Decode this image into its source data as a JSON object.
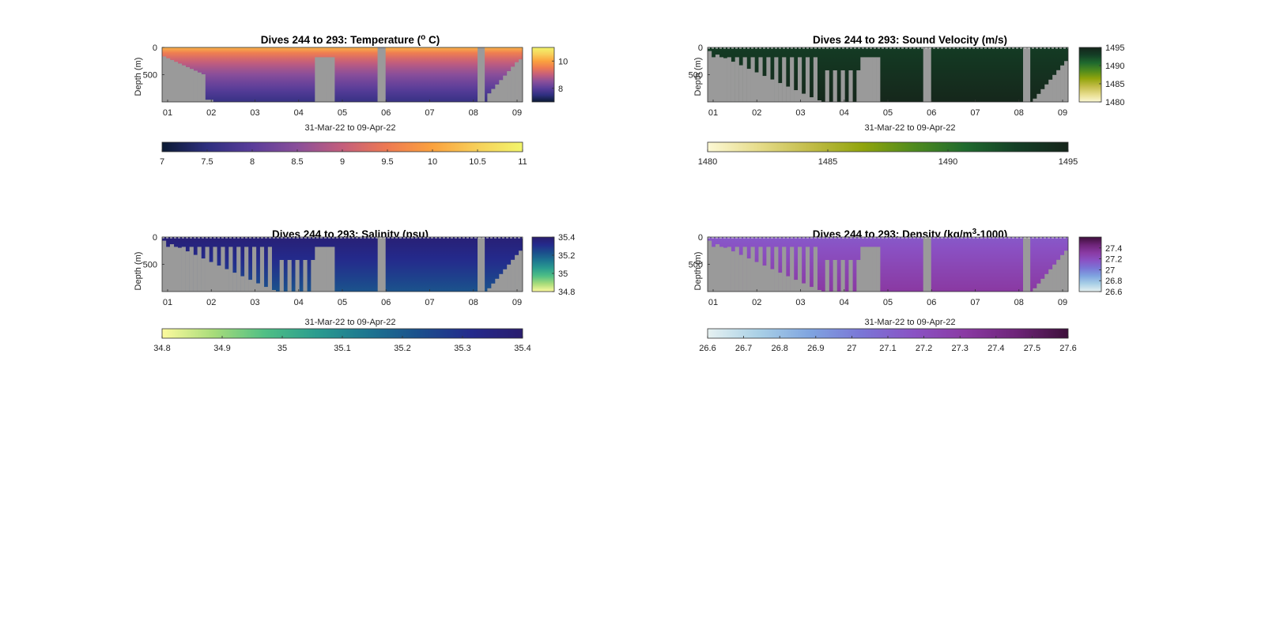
{
  "figure": {
    "background": "#ffffff",
    "land_color": "#9a9a9a"
  },
  "chart_data": [
    {
      "type": "heatmap",
      "title": "Dives 244 to 293: Temperature (",
      "title_sup": "o",
      "title_suffix": " C)",
      "xlabel": "31-Mar-22 to 09-Apr-22",
      "ylabel": "Depth (m)",
      "x_ticks": [
        "01",
        "02",
        "03",
        "04",
        "05",
        "06",
        "07",
        "08",
        "09"
      ],
      "x_range": [
        "31-Mar-22",
        "09-Apr-22"
      ],
      "y_ticks": [
        0,
        500
      ],
      "ylim": [
        0,
        1000
      ],
      "y_reversed": true,
      "clim": [
        7,
        11
      ],
      "colormap": [
        "#0b1a33",
        "#2e2f7f",
        "#5a3d9a",
        "#8a4f9a",
        "#c45e7c",
        "#ee7a52",
        "#fba23e",
        "#f7d05a",
        "#f2f56b"
      ],
      "colorbar_right_ticks": [
        10,
        8
      ],
      "colorbar_bottom_ticks": [
        7,
        7.5,
        8,
        8.5,
        9,
        9.5,
        10,
        10.5,
        11
      ],
      "surface_value": 10.2,
      "bottom_value": 7.6
    },
    {
      "type": "heatmap",
      "title": "Dives 244 to 293: Sound Velocity (m/s)",
      "title_sup": "",
      "title_suffix": "",
      "xlabel": "31-Mar-22 to 09-Apr-22",
      "ylabel": "Depth (m)",
      "x_ticks": [
        "01",
        "02",
        "03",
        "04",
        "05",
        "06",
        "07",
        "08",
        "09"
      ],
      "x_range": [
        "31-Mar-22",
        "09-Apr-22"
      ],
      "y_ticks": [
        0,
        500
      ],
      "ylim": [
        0,
        1000
      ],
      "y_reversed": true,
      "clim": [
        1480,
        1495
      ],
      "colormap": [
        "#fcf8d4",
        "#e6dc8a",
        "#c2bc48",
        "#91a50c",
        "#4f8b1e",
        "#1f6a2e",
        "#143f26",
        "#15241a"
      ],
      "colorbar_right_ticks": [
        1495,
        1490,
        1485,
        1480
      ],
      "colorbar_bottom_ticks": [
        1480,
        1485,
        1490,
        1495
      ],
      "surface_value": 1493.2,
      "bottom_value": 1494.8
    },
    {
      "type": "heatmap",
      "title": "Dives 244 to 293: Salinity (psu)",
      "title_sup": "",
      "title_suffix": "",
      "xlabel": "31-Mar-22 to 09-Apr-22",
      "ylabel": "Depth (m)",
      "x_ticks": [
        "01",
        "02",
        "03",
        "04",
        "05",
        "06",
        "07",
        "08",
        "09"
      ],
      "x_range": [
        "31-Mar-22",
        "09-Apr-22"
      ],
      "y_ticks": [
        0,
        500
      ],
      "ylim": [
        0,
        1000
      ],
      "y_reversed": true,
      "clim": [
        34.8,
        35.4
      ],
      "colormap": [
        "#fdfa9e",
        "#a8dc7a",
        "#4fbf85",
        "#2a9c8f",
        "#1d7590",
        "#1b4f8c",
        "#242a8c",
        "#2a1d6e"
      ],
      "colorbar_right_ticks": [
        35.4,
        35.2,
        35,
        34.8
      ],
      "colorbar_bottom_ticks": [
        34.8,
        34.9,
        35,
        35.1,
        35.2,
        35.3,
        35.4
      ],
      "surface_value": 35.38,
      "bottom_value": 35.22
    },
    {
      "type": "heatmap",
      "title": "Dives 244 to 293: Density (kg/m",
      "title_sup": "3",
      "title_suffix": "-1000)",
      "xlabel": "31-Mar-22 to 09-Apr-22",
      "ylabel": "Depth (m)",
      "x_ticks": [
        "01",
        "02",
        "03",
        "04",
        "05",
        "06",
        "07",
        "08",
        "09"
      ],
      "x_range": [
        "31-Mar-22",
        "09-Apr-22"
      ],
      "y_ticks": [
        0,
        500
      ],
      "ylim": [
        0,
        1000
      ],
      "y_reversed": true,
      "clim": [
        26.6,
        27.6
      ],
      "colormap": [
        "#e6f1f1",
        "#a9d0e6",
        "#7fa4e0",
        "#7a75d6",
        "#8a52c4",
        "#8a3aa3",
        "#6d2478",
        "#3d0f3a"
      ],
      "colorbar_right_ticks": [
        27.4,
        27.2,
        27,
        26.8,
        26.6
      ],
      "colorbar_bottom_ticks": [
        26.6,
        26.7,
        26.8,
        26.9,
        27,
        27.1,
        27.2,
        27.3,
        27.4,
        27.5,
        27.6
      ],
      "surface_value": 27.14,
      "bottom_value": 27.32
    }
  ]
}
